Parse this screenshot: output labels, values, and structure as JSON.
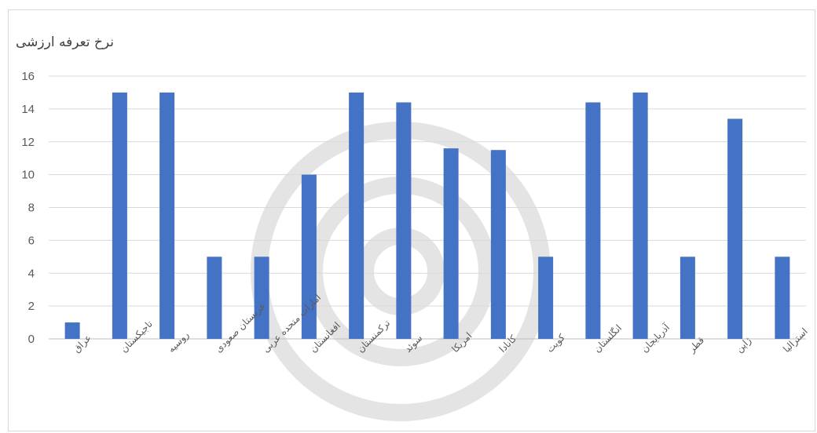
{
  "chart_data": {
    "type": "bar",
    "title": "نرخ تعرفه ارزشی",
    "xlabel": "",
    "ylabel": "",
    "ylim": [
      0,
      16
    ],
    "yticks": [
      0,
      2,
      4,
      6,
      8,
      10,
      12,
      14,
      16
    ],
    "grid": true,
    "legend": "none",
    "bar_color": "#4472c4",
    "categories": [
      "عراق",
      "تاجیکستان",
      "روسیه",
      "عربستان صعودی",
      "امارات متحده عربی",
      "افغانستان",
      "ترکمنستان",
      "سوئد",
      "امریکا",
      "کانادا",
      "کویت",
      "انگلستان",
      "آذربایجان",
      "قطر",
      "ژاپن",
      "استرالیا"
    ],
    "values": [
      1,
      15,
      15,
      5,
      5,
      10,
      15,
      14.4,
      11.6,
      11.5,
      5,
      14.4,
      15,
      5,
      13.4,
      5
    ]
  }
}
